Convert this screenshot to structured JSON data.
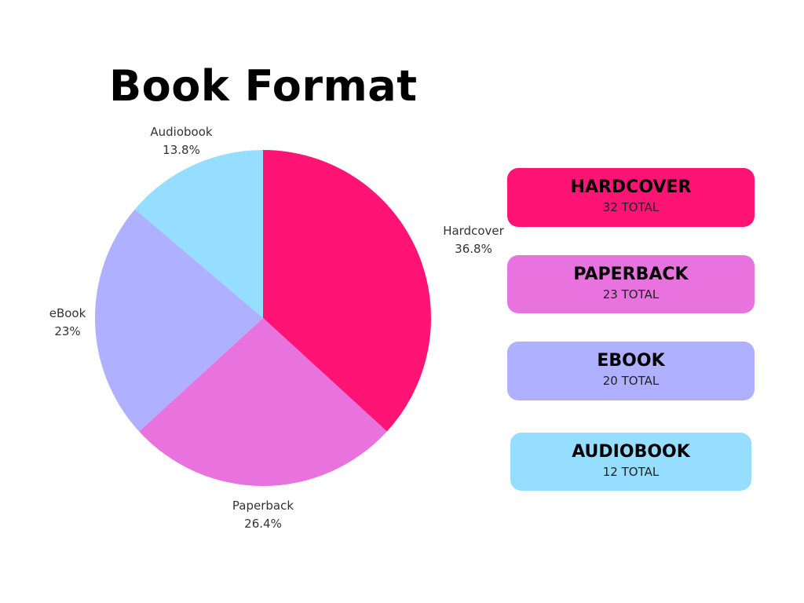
{
  "chart_data": {
    "type": "pie",
    "title": "Book Format",
    "start": "top",
    "direction": "clockwise",
    "slices": [
      {
        "label": "Hardcover",
        "value": 36.8,
        "value_label": "36.8%",
        "color": "#FF1476"
      },
      {
        "label": "Paperback",
        "value": 26.4,
        "value_label": "26.4%",
        "color": "#E873DF"
      },
      {
        "label": "eBook",
        "value": 23,
        "value_label": "23%",
        "color": "#AFB0FF"
      },
      {
        "label": "Audiobook",
        "value": 13.8,
        "value_label": "13.8%",
        "color": "#96DEFF"
      }
    ]
  },
  "cards": [
    {
      "name": "HARDCOVER",
      "total": "32 TOTAL",
      "color": "#FF1476"
    },
    {
      "name": "PAPERBACK",
      "total": "23 TOTAL",
      "color": "#E873DF"
    },
    {
      "name": "EBOOK",
      "total": "20 TOTAL",
      "color": "#AFB0FF"
    },
    {
      "name": "AUDIOBOOK",
      "total": "12 TOTAL",
      "color": "#96DEFF"
    }
  ]
}
